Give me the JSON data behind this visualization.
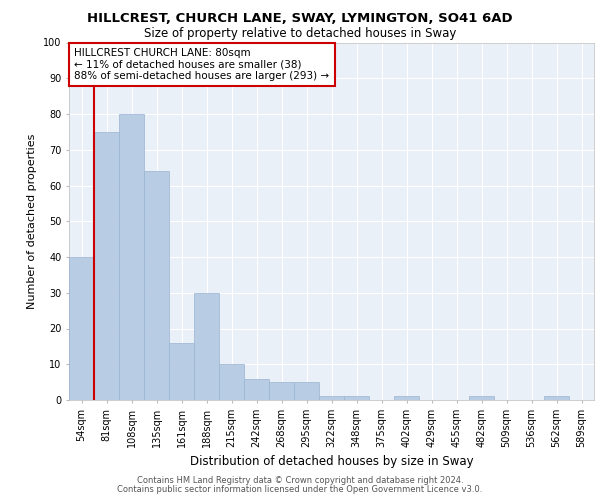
{
  "title1": "HILLCREST, CHURCH LANE, SWAY, LYMINGTON, SO41 6AD",
  "title2": "Size of property relative to detached houses in Sway",
  "xlabel": "Distribution of detached houses by size in Sway",
  "ylabel": "Number of detached properties",
  "footer1": "Contains HM Land Registry data © Crown copyright and database right 2024.",
  "footer2": "Contains public sector information licensed under the Open Government Licence v3.0.",
  "categories": [
    "54sqm",
    "81sqm",
    "108sqm",
    "135sqm",
    "161sqm",
    "188sqm",
    "215sqm",
    "242sqm",
    "268sqm",
    "295sqm",
    "322sqm",
    "348sqm",
    "375sqm",
    "402sqm",
    "429sqm",
    "455sqm",
    "482sqm",
    "509sqm",
    "536sqm",
    "562sqm",
    "589sqm"
  ],
  "values": [
    40,
    75,
    80,
    64,
    16,
    30,
    10,
    6,
    5,
    5,
    1,
    1,
    0,
    1,
    0,
    0,
    1,
    0,
    0,
    1,
    0
  ],
  "bar_color": "#b8cce4",
  "bar_edge_color": "#9ab4d0",
  "annotation_title": "HILLCREST CHURCH LANE: 80sqm",
  "annotation_line1": "← 11% of detached houses are smaller (38)",
  "annotation_line2": "88% of semi-detached houses are larger (293) →",
  "vline_x_index": 1,
  "ylim": [
    0,
    100
  ],
  "yticks": [
    0,
    10,
    20,
    30,
    40,
    50,
    60,
    70,
    80,
    90,
    100
  ],
  "background_color": "#eaf0f8",
  "grid_color": "#ffffff",
  "annotation_box_color": "#ffffff",
  "annotation_box_edge": "#cc0000",
  "vline_color": "#cc0000",
  "title1_fontsize": 9.5,
  "title2_fontsize": 8.5,
  "ylabel_fontsize": 8,
  "xlabel_fontsize": 8.5,
  "tick_fontsize": 7,
  "footer_fontsize": 6,
  "annotation_fontsize": 7.5
}
